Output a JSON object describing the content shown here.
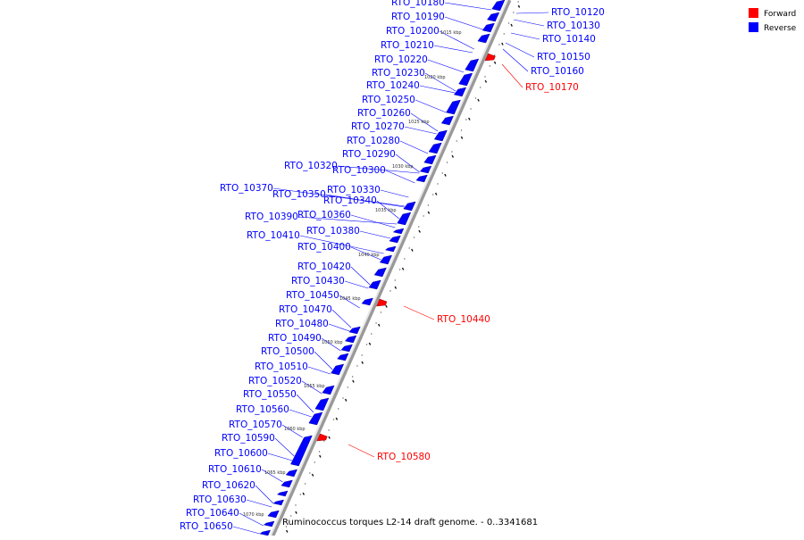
{
  "colors": {
    "forward": "#ff0000",
    "reverse": "#0000ff",
    "axis": "#555555",
    "leader_reverse": "#0000ff",
    "leader_forward": "#ff0000"
  },
  "legend": [
    {
      "name": "Forward",
      "color": "#ff0000"
    },
    {
      "name": "Reverse",
      "color": "#0000ff"
    }
  ],
  "caption": "Ruminococcus torques L2-14 draft genome. - 0..3341681",
  "scale_labels": [
    "1015 kbp",
    "1020 kbp",
    "1025 kbp",
    "1030 kbp",
    "1035 kbp",
    "1040 kbp",
    "1045 kbp",
    "1050 kbp",
    "1055 kbp",
    "1060 kbp",
    "1065 kbp",
    "1070 kbp"
  ],
  "right_labels": [
    {
      "text": "RTO_10120",
      "strand": "reverse"
    },
    {
      "text": "RTO_10130",
      "strand": "reverse"
    },
    {
      "text": "RTO_10140",
      "strand": "reverse"
    },
    {
      "text": "RTO_10150",
      "strand": "reverse"
    },
    {
      "text": "RTO_10160",
      "strand": "reverse"
    },
    {
      "text": "RTO_10170",
      "strand": "forward"
    },
    {
      "text": "RTO_10440",
      "strand": "forward"
    },
    {
      "text": "RTO_10580",
      "strand": "forward"
    }
  ],
  "left_labels": [
    "RTO_10180",
    "RTO_10190",
    "RTO_10200",
    "RTO_10210",
    "RTO_10220",
    "RTO_10230",
    "RTO_10240",
    "RTO_10250",
    "RTO_10260",
    "RTO_10270",
    "RTO_10280",
    "RTO_10290",
    "RTO_10320",
    "RTO_10300",
    "RTO_10370",
    "RTO_10330",
    "RTO_10350",
    "RTO_10340",
    "RTO_10390",
    "RTO_10360",
    "RTO_10410",
    "RTO_10380",
    "RTO_10400",
    "RTO_10420",
    "RTO_10430",
    "RTO_10450",
    "RTO_10470",
    "RTO_10480",
    "RTO_10490",
    "RTO_10500",
    "RTO_10510",
    "RTO_10520",
    "RTO_10550",
    "RTO_10560",
    "RTO_10570",
    "RTO_10590",
    "RTO_10600",
    "RTO_10610",
    "RTO_10620",
    "RTO_10630",
    "RTO_10640",
    "RTO_10650"
  ]
}
